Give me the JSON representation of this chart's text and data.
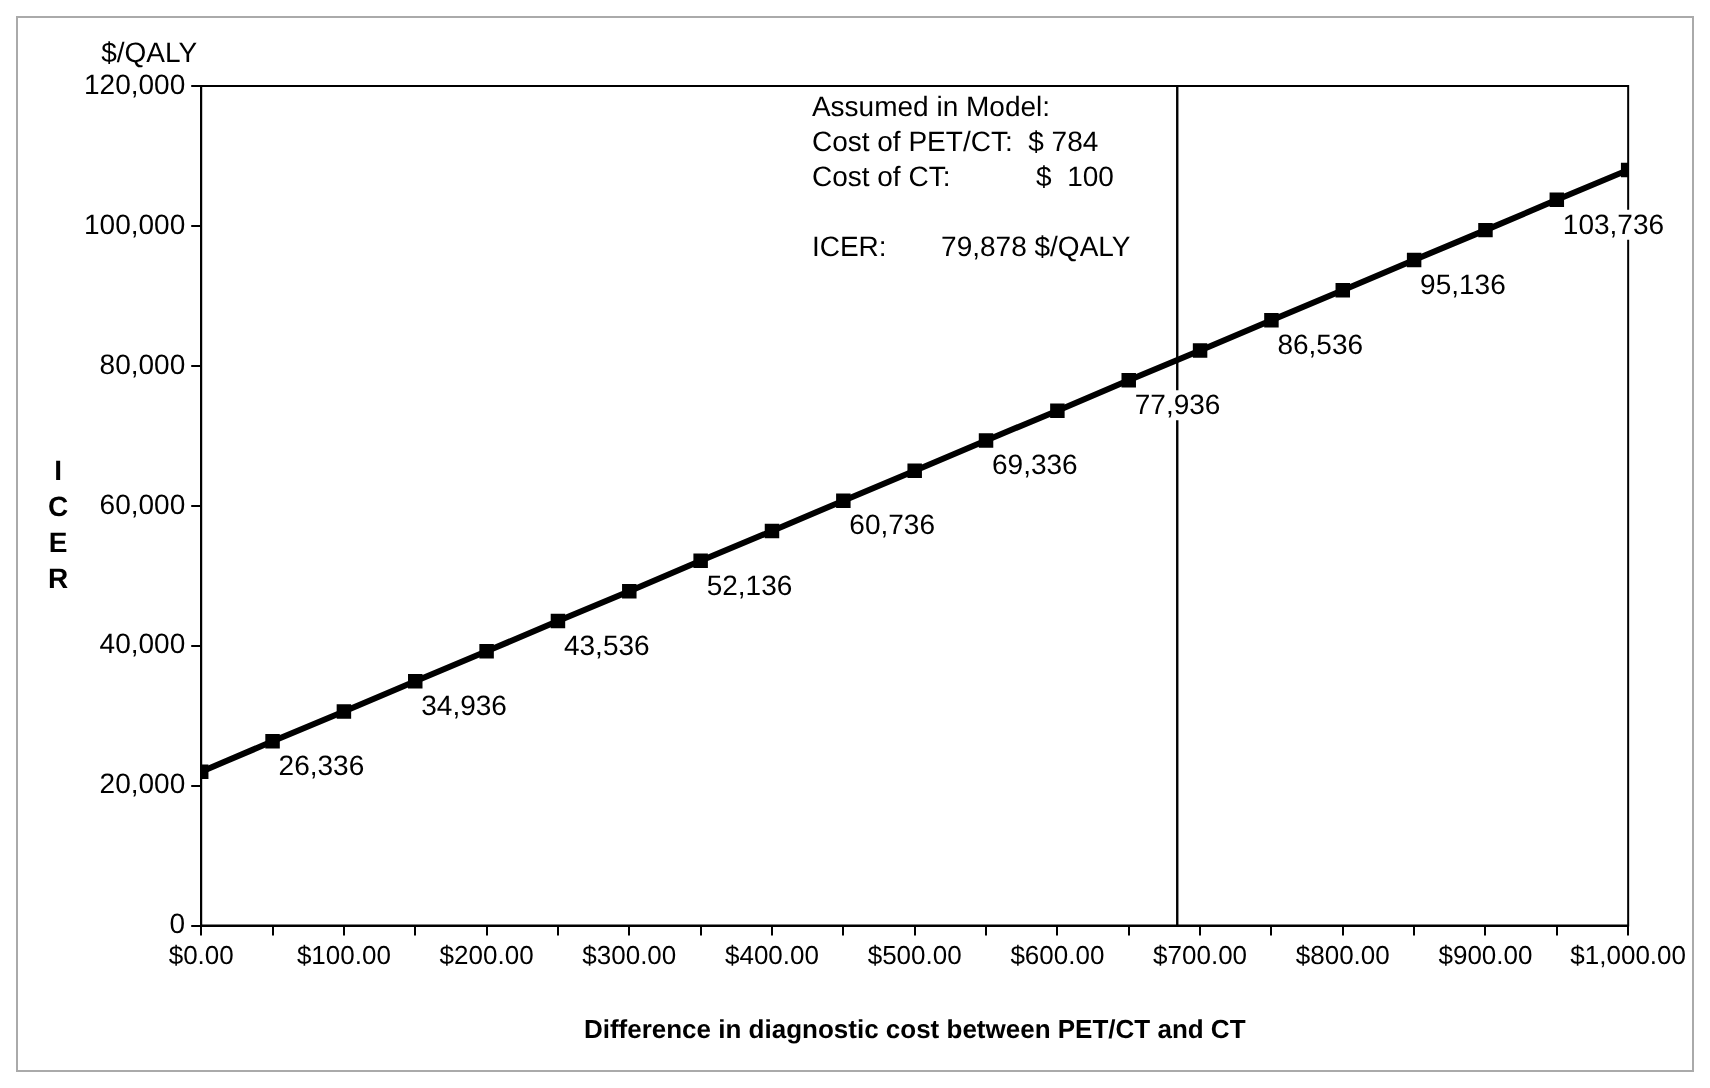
{
  "chart_data": {
    "type": "line",
    "xlabel": "Difference in diagnostic cost between PET/CT and CT",
    "ylabel": "ICER",
    "x": [
      0,
      50,
      100,
      150,
      200,
      250,
      300,
      350,
      400,
      450,
      500,
      550,
      600,
      650,
      700,
      750,
      800,
      850,
      900,
      950,
      1000
    ],
    "series": [
      {
        "color": "#000000",
        "values": [
          22000,
          26336,
          30600,
          34936,
          39200,
          43536,
          47800,
          52136,
          56400,
          60736,
          65000,
          69336,
          73600,
          77936,
          82200,
          86536,
          90800,
          95136,
          99400,
          103736,
          108000
        ],
        "value_labels": [
          null,
          "26,336",
          null,
          "34,936",
          null,
          "43,536",
          null,
          "52,136",
          null,
          "60,736",
          null,
          "69,336",
          null,
          "77,936",
          null,
          "86,536",
          null,
          "95,136",
          null,
          "103,736",
          null
        ]
      }
    ],
    "xlim": [
      0,
      1000
    ],
    "xticks": [
      {
        "value": 0,
        "label": "$0.00"
      },
      {
        "value": 50,
        "label": null
      },
      {
        "value": 100,
        "label": "$100.00"
      },
      {
        "value": 150,
        "label": null
      },
      {
        "value": 200,
        "label": "$200.00"
      },
      {
        "value": 250,
        "label": null
      },
      {
        "value": 300,
        "label": "$300.00"
      },
      {
        "value": 350,
        "label": null
      },
      {
        "value": 400,
        "label": "$400.00"
      },
      {
        "value": 450,
        "label": null
      },
      {
        "value": 500,
        "label": "$500.00"
      },
      {
        "value": 550,
        "label": null
      },
      {
        "value": 600,
        "label": "$600.00"
      },
      {
        "value": 650,
        "label": null
      },
      {
        "value": 700,
        "label": "$700.00"
      },
      {
        "value": 750,
        "label": null
      },
      {
        "value": 800,
        "label": "$800.00"
      },
      {
        "value": 850,
        "label": null
      },
      {
        "value": 900,
        "label": "$900.00"
      },
      {
        "value": 950,
        "label": null
      },
      {
        "value": 1000,
        "label": "$1,000.00"
      }
    ],
    "ylim": [
      0,
      120000
    ],
    "yticks": [
      {
        "value": 0,
        "label": "0"
      },
      {
        "value": 20000,
        "label": "20,000"
      },
      {
        "value": 40000,
        "label": "40,000"
      },
      {
        "value": 60000,
        "label": "60,000"
      },
      {
        "value": 80000,
        "label": "80,000"
      },
      {
        "value": 100000,
        "label": "100,000"
      },
      {
        "value": 120000,
        "label": "120,000"
      }
    ],
    "ref_lines": [
      {
        "axis": "x",
        "value": 684,
        "color": "#000000"
      }
    ],
    "annotations": [
      "$/QALY",
      "Assumed in Model:",
      "Cost of PET/CT:  $ 784",
      "Cost of CT:           $  100",
      "ICER:       79,878 $/QALY"
    ],
    "marker": "square",
    "line_style": "solid",
    "grid": false,
    "legend": false
  }
}
